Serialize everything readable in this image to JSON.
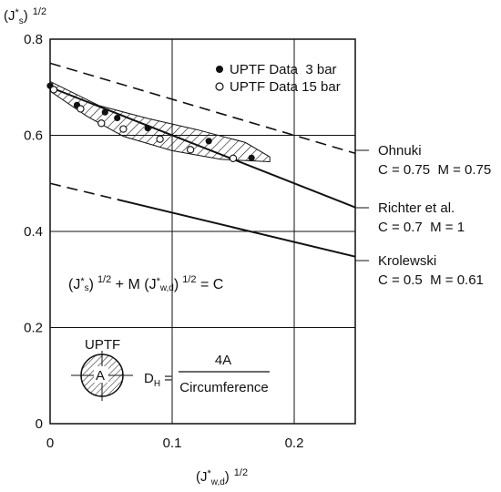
{
  "chart_data": {
    "type": "line",
    "ylabel": "(J*s) 1/2",
    "ylabel_parts": {
      "base": "(J",
      "star": "*",
      "sub": "s",
      "close": ")",
      "exp": "1/2"
    },
    "xlabel": "(J*w,d) 1/2",
    "xlabel_parts": {
      "base": "(J",
      "star": "*",
      "sub": "w,d",
      "close": ")",
      "exp": "1/2"
    },
    "xlim": [
      0,
      0.25
    ],
    "ylim": [
      0,
      0.8
    ],
    "x_ticks": [
      0,
      0.1,
      0.2
    ],
    "x_tick_labels": [
      "0",
      "0.1",
      "0.2"
    ],
    "y_ticks": [
      0,
      0.2,
      0.4,
      0.6,
      0.8
    ],
    "y_tick_labels": [
      "0",
      "0.2",
      "0.4",
      "0.6",
      "0.8"
    ],
    "grid": true,
    "series": [
      {
        "name": "Ohnuki",
        "style": "dashed",
        "x": [
          0,
          0.25
        ],
        "y": [
          0.75,
          0.5625
        ],
        "label_lines": [
          "Ohnuki",
          "C = 0.75  M = 0.75"
        ]
      },
      {
        "name": "Richter et al.",
        "style": "solid",
        "x": [
          0,
          0.25
        ],
        "y": [
          0.7,
          0.45
        ],
        "label_lines": [
          "Richter et al.",
          "C = 0.7  M = 1"
        ]
      },
      {
        "name": "Krolewski",
        "style": "dashed-solid",
        "x": [
          0,
          0.25
        ],
        "y": [
          0.5,
          0.3475
        ],
        "label_lines": [
          "Krolewski",
          "C = 0.5  M = 0.61"
        ]
      }
    ],
    "points": [
      {
        "name": "UPTF Data  3 bar",
        "marker": "filled",
        "x": [
          0.0,
          0.022,
          0.045,
          0.055,
          0.08,
          0.13,
          0.165
        ],
        "y": [
          0.703,
          0.663,
          0.648,
          0.636,
          0.615,
          0.588,
          0.553
        ]
      },
      {
        "name": "UPTF Data 15 bar",
        "marker": "open",
        "x": [
          0.003,
          0.025,
          0.042,
          0.06,
          0.09,
          0.115,
          0.15
        ],
        "y": [
          0.695,
          0.655,
          0.625,
          0.613,
          0.592,
          0.57,
          0.552
        ]
      }
    ],
    "hatched_band": {
      "upper": [
        [
          0.0,
          0.712
        ],
        [
          0.04,
          0.662
        ],
        [
          0.08,
          0.635
        ],
        [
          0.12,
          0.612
        ],
        [
          0.16,
          0.585
        ],
        [
          0.18,
          0.555
        ]
      ],
      "lower": [
        [
          0.18,
          0.545
        ],
        [
          0.14,
          0.55
        ],
        [
          0.1,
          0.568
        ],
        [
          0.06,
          0.598
        ],
        [
          0.03,
          0.64
        ],
        [
          0.0,
          0.692
        ]
      ]
    },
    "equation": {
      "lhs": "(J",
      "star": "*",
      "sub1": "s",
      "exp1": "1/2",
      "mid": " + M (J",
      "sub2": "w,d",
      "exp2": "1/2",
      "rhs": " = C"
    },
    "inset": {
      "title": "UPTF",
      "area_label": "A",
      "formula_lhs": "D",
      "formula_lhs_sub": "H",
      "formula_eq": " = ",
      "numerator": "4A",
      "denominator": "Circumference"
    }
  }
}
